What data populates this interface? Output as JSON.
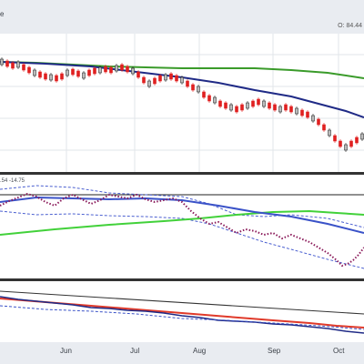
{
  "header": {
    "title_fragment": "e",
    "ohlc_readout": "O: 84.44"
  },
  "indicator_panel": {
    "label": ".54 -14.75"
  },
  "date_axis": {
    "labels": [
      "Jun",
      "Jul",
      "Aug",
      "Sep",
      "Oct"
    ]
  },
  "colors": {
    "background": "#e9ecf1",
    "panel": "#ffffff",
    "ma_green": "#3a9b2a",
    "ma_navy": "#1f2a86",
    "bullish": "#ffffff",
    "bearish": "#e02020",
    "rsi_dots": "#8a1a5a",
    "bright_green": "#42d13a",
    "blue_line": "#3a52c8",
    "red_line": "#e03a2a"
  }
}
